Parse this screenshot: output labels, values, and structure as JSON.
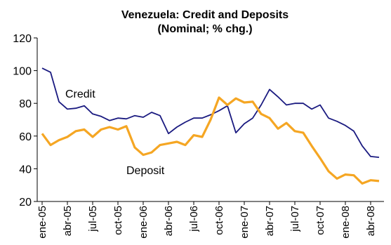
{
  "chart_data": {
    "type": "line",
    "title": "Venezuela: Credit and Deposits",
    "subtitle": "(Nominal; % chg.)",
    "xlabel": "",
    "ylabel": "",
    "ylim": [
      20,
      120
    ],
    "yticks": [
      20,
      40,
      60,
      80,
      100,
      120
    ],
    "grid": false,
    "x_tick_labels": [
      "ene-05",
      "abr-05",
      "jul-05",
      "oct-05",
      "ene-06",
      "abr-06",
      "jul-06",
      "oct-06",
      "ene-07",
      "abr-07",
      "jul-07",
      "oct-07",
      "ene-08",
      "abr-08"
    ],
    "x": [
      "ene-05",
      "feb-05",
      "mar-05",
      "abr-05",
      "may-05",
      "jun-05",
      "jul-05",
      "ago-05",
      "sep-05",
      "oct-05",
      "nov-05",
      "dic-05",
      "ene-06",
      "feb-06",
      "mar-06",
      "abr-06",
      "may-06",
      "jun-06",
      "jul-06",
      "ago-06",
      "sep-06",
      "oct-06",
      "nov-06",
      "dic-06",
      "ene-07",
      "feb-07",
      "mar-07",
      "abr-07",
      "may-07",
      "jun-07",
      "jul-07",
      "ago-07",
      "sep-07",
      "oct-07",
      "nov-07",
      "dic-07",
      "ene-08",
      "feb-08",
      "mar-08",
      "abr-08",
      "may-08"
    ],
    "series": [
      {
        "name": "Credit",
        "color": "#1a1a80",
        "values": [
          101.5,
          99,
          81,
          76.5,
          77,
          78.5,
          73.5,
          72,
          69.5,
          71,
          70.5,
          72.5,
          71.5,
          74.5,
          72.5,
          61.5,
          65.5,
          68.5,
          71,
          71,
          73,
          75.5,
          78.5,
          62,
          67.5,
          71,
          79,
          88.5,
          84,
          79,
          80,
          80,
          76.5,
          79,
          71,
          69,
          66.5,
          63,
          54,
          47.5,
          47
        ]
      },
      {
        "name": "Deposit",
        "color": "#f5a623",
        "values": [
          61.5,
          54.5,
          57.5,
          59.5,
          63,
          64,
          59.5,
          64,
          65.5,
          64,
          66,
          53,
          48.5,
          50,
          54.5,
          55.5,
          56.5,
          54.5,
          60.5,
          59.5,
          70,
          83.5,
          79,
          83,
          80.5,
          81,
          73.5,
          71,
          64.5,
          68,
          63,
          62,
          54,
          46.5,
          38.5,
          34,
          36.5,
          36,
          31,
          33,
          32.5
        ]
      }
    ]
  }
}
